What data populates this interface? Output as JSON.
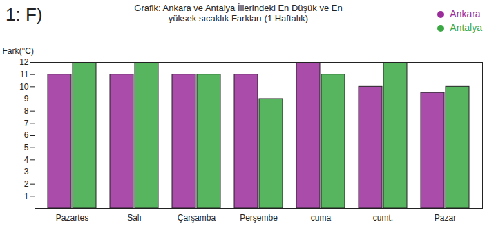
{
  "chart_data": {
    "type": "bar",
    "title": "Grafik: Ankara ve Antalya İllerindeki En Düşük ve En yüksek sıcaklık Farkları (1 Haftalık)",
    "annotation": "1: F)",
    "y_label": "Fark(°C)",
    "categories": [
      "Pazartes",
      "Salı",
      "Çarşamba",
      "Perşembe",
      "cuma",
      "cumt.",
      "Pazar"
    ],
    "series": [
      {
        "name": "Ankara",
        "color": "#9b2d9b",
        "values": [
          11,
          11,
          11,
          11,
          12,
          10,
          9.5
        ]
      },
      {
        "name": "Antalya",
        "color": "#3aa843",
        "values": [
          12,
          12,
          11,
          9,
          11,
          12,
          10
        ]
      }
    ],
    "ylim": [
      0,
      12
    ],
    "yticks": [
      1,
      2,
      3,
      4,
      5,
      6,
      7,
      8,
      9,
      10,
      11,
      12
    ],
    "grid": false,
    "legend": "top-right"
  }
}
